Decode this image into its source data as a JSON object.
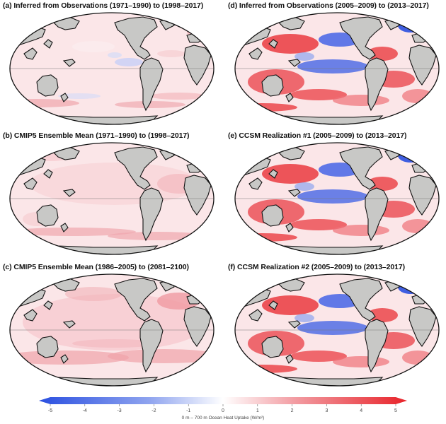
{
  "figure": {
    "panels": [
      {
        "title": "(a) Inferred from Observations (1971–1990) to (1998–2017)",
        "pattern": "weak"
      },
      {
        "title": "(d) Inferred from Observations (2005–2009) to (2013–2017)",
        "pattern": "strong"
      },
      {
        "title": "(b) CMIP5 Ensemble Mean (1971–1990) to (1998–2017)",
        "pattern": "mild"
      },
      {
        "title": "(e) CCSM Realization #1 (2005–2009) to (2013–2017)",
        "pattern": "strong"
      },
      {
        "title": "(c) CMIP5 Ensemble Mean (1986–2005) to (2081–2100)",
        "pattern": "warm"
      },
      {
        "title": "(f) CCSM Realization #2 (2005–2009) to (2013–2017)",
        "pattern": "strong"
      }
    ]
  },
  "colorbar": {
    "ticks": [
      "-5",
      "-4",
      "-3",
      "-2",
      "-1",
      "0",
      "1",
      "2",
      "3",
      "4",
      "5"
    ],
    "label": "0 m – 700 m Ocean Heat Uptake (W/m²)",
    "colors": {
      "negative": "#2a4fe0",
      "zero": "#ffffff",
      "positive": "#e8232a"
    }
  },
  "map_colors": {
    "land": "#c8c8c6",
    "outline": "#111111",
    "ocean_base": "#fbe6e8"
  }
}
